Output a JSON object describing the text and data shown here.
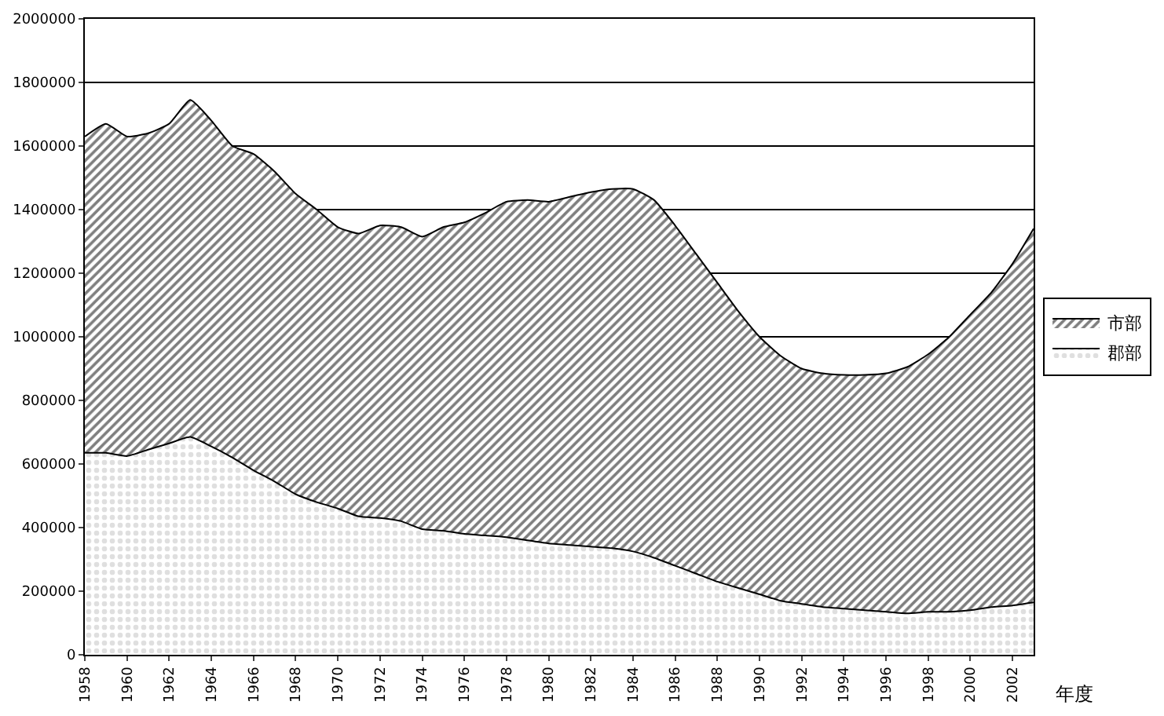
{
  "chart_data": {
    "type": "area",
    "stacked": true,
    "xlabel": "年度",
    "x": [
      1958,
      1959,
      1960,
      1961,
      1962,
      1963,
      1964,
      1965,
      1966,
      1967,
      1968,
      1969,
      1970,
      1971,
      1972,
      1973,
      1974,
      1975,
      1976,
      1977,
      1978,
      1979,
      1980,
      1981,
      1982,
      1983,
      1984,
      1985,
      1986,
      1987,
      1988,
      1989,
      1990,
      1991,
      1992,
      1993,
      1994,
      1995,
      1996,
      1997,
      1998,
      1999,
      2000,
      2001,
      2002,
      2003
    ],
    "series": [
      {
        "name": "郡部",
        "color": "#c0c0c0",
        "values": [
          635000,
          635000,
          625000,
          645000,
          665000,
          685000,
          655000,
          620000,
          580000,
          545000,
          505000,
          480000,
          460000,
          435000,
          430000,
          420000,
          395000,
          390000,
          380000,
          375000,
          370000,
          360000,
          350000,
          345000,
          340000,
          335000,
          325000,
          305000,
          280000,
          255000,
          230000,
          210000,
          190000,
          170000,
          160000,
          150000,
          145000,
          140000,
          135000,
          130000,
          135000,
          135000,
          140000,
          150000,
          155000,
          165000
        ]
      },
      {
        "name": "市部",
        "color": "#000000",
        "values": [
          995000,
          1035000,
          1005000,
          995000,
          1005000,
          1060000,
          1025000,
          980000,
          995000,
          975000,
          945000,
          920000,
          885000,
          890000,
          920000,
          925000,
          920000,
          955000,
          980000,
          1015000,
          1055000,
          1070000,
          1075000,
          1095000,
          1115000,
          1130000,
          1140000,
          1125000,
          1070000,
          1005000,
          940000,
          870000,
          810000,
          770000,
          740000,
          735000,
          735000,
          740000,
          750000,
          775000,
          810000,
          865000,
          930000,
          990000,
          1075000,
          1175000
        ]
      }
    ],
    "xlim": [
      1958,
      2003
    ],
    "xticks": [
      1958,
      1960,
      1962,
      1964,
      1966,
      1968,
      1970,
      1972,
      1974,
      1976,
      1978,
      1980,
      1982,
      1984,
      1986,
      1988,
      1990,
      1992,
      1994,
      1996,
      1998,
      2000,
      2002
    ],
    "ylim": [
      0,
      2000000
    ],
    "yticks": [
      0,
      200000,
      400000,
      600000,
      800000,
      1000000,
      1200000,
      1400000,
      1600000,
      1800000,
      2000000
    ],
    "grid": "y",
    "legend": "right"
  }
}
